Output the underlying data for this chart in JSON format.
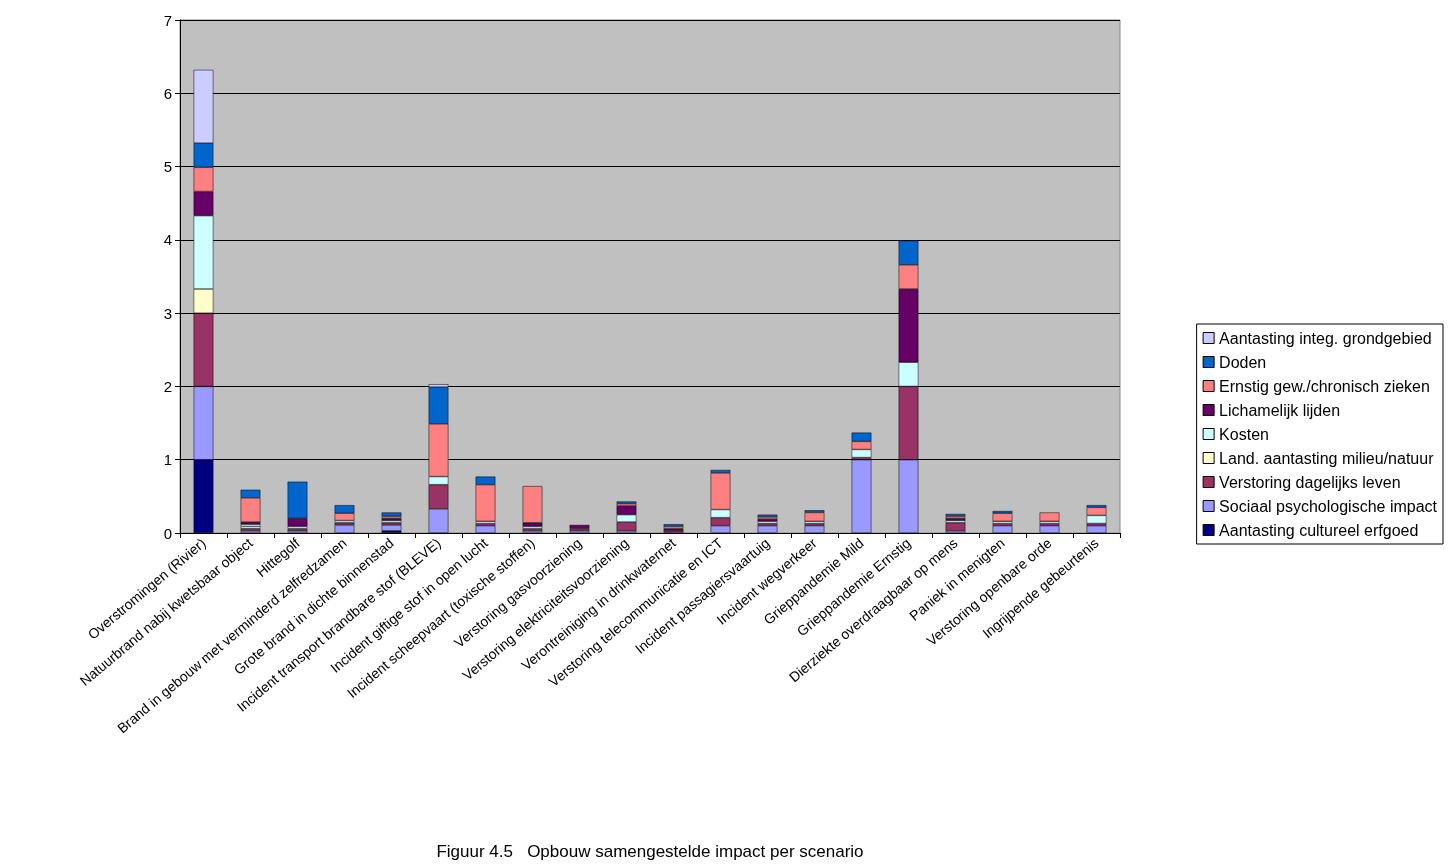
{
  "chart_data": {
    "type": "bar",
    "title": "Figuur 4.5   Opbouw samengestelde impact per scenario",
    "stacked": true,
    "legend": "right",
    "grid": "y",
    "ylim": [
      0,
      7
    ],
    "yticks": [
      0,
      1,
      2,
      3,
      4,
      5,
      6,
      7
    ],
    "categories": [
      "Overstromingen (Rivier)",
      "Natuurbrand nabij kwetsbaar object",
      "Hittegolf",
      "Brand in gebouw met verminderd zelfredzamen",
      "Grote brand in dichte binnenstad",
      "Incident transport brandbare stof (BLEVE)",
      "Incident giftige stof in open lucht",
      "Incident scheepvaart (toxische stoffen)",
      "Verstoring gasvoorziening",
      "Verstoring elektriciteitsvoorziening",
      "Verontreiniging in drinkwaternet",
      "Verstoring telecommunicatie en ICT",
      "Incident passagiersvaartuig",
      "Incident wegverkeer",
      "Grieppandemie Mild",
      "Grieppandemie Ernstig",
      "Dierziekte overdraagbaar op mens",
      "Paniek in menigten",
      "Verstoring openbare orde",
      "Ingrijpende gebeurtenis"
    ],
    "series": [
      {
        "name": "Aantasting cultureel erfgoed",
        "color": "#000080",
        "values": [
          1,
          null,
          null,
          null,
          0.03,
          null,
          null,
          null,
          null,
          null,
          null,
          null,
          null,
          null,
          null,
          null,
          null,
          null,
          null,
          null
        ]
      },
      {
        "name": "Sociaal psychologische impact",
        "color": "#9999ff",
        "values": [
          1,
          0.03,
          0.03,
          0.11,
          0.08,
          0.33,
          0.1,
          0.03,
          0.03,
          0.03,
          null,
          0.1,
          0.1,
          0.1,
          1,
          1,
          0.03,
          0.1,
          0.1,
          0.1
        ]
      },
      {
        "name": "Verstoring dagelijks leven",
        "color": "#993366",
        "values": [
          1,
          0.03,
          0.03,
          0.03,
          0.03,
          0.33,
          0.03,
          0.03,
          0.03,
          0.12,
          0.03,
          0.11,
          0.03,
          0.03,
          0.03,
          1,
          0.11,
          0.03,
          0.03,
          0.03
        ]
      },
      {
        "name": "Land. aantasting milieu/natuur",
        "color": "#ffffcc",
        "values": [
          0.33,
          0.03,
          null,
          null,
          null,
          null,
          null,
          null,
          null,
          null,
          null,
          null,
          null,
          null,
          null,
          null,
          null,
          null,
          null,
          null
        ]
      },
      {
        "name": "Kosten",
        "color": "#ccffff",
        "values": [
          1,
          0.03,
          0.03,
          0.03,
          0.03,
          0.11,
          0.03,
          0.03,
          null,
          0.1,
          null,
          0.11,
          0.03,
          0.03,
          0.11,
          0.33,
          0.03,
          0.03,
          0.03,
          0.11
        ]
      },
      {
        "name": "Lichamelijk lijden",
        "color": "#660066",
        "values": [
          0.33,
          0.03,
          0.11,
          null,
          0.03,
          null,
          null,
          0.05,
          0.05,
          0.12,
          0.03,
          null,
          0.03,
          null,
          null,
          1,
          0.03,
          null,
          null,
          null
        ]
      },
      {
        "name": "Ernstig gew./chronisch zieken",
        "color": "#ff8080",
        "values": [
          0.33,
          0.33,
          null,
          0.1,
          0.03,
          0.72,
          0.5,
          0.5,
          null,
          0.03,
          0.03,
          0.5,
          0.03,
          0.12,
          0.11,
          0.33,
          0.03,
          0.11,
          0.12,
          0.11
        ]
      },
      {
        "name": "Doden",
        "color": "#0066cc",
        "values": [
          0.33,
          0.11,
          0.5,
          0.11,
          0.05,
          0.5,
          0.11,
          null,
          null,
          0.03,
          0.03,
          0.04,
          0.03,
          0.03,
          0.12,
          0.33,
          0.03,
          0.03,
          null,
          0.03
        ]
      },
      {
        "name": "Aantasting integ. grondgebied",
        "color": "#ccccff",
        "values": [
          1,
          null,
          null,
          null,
          null,
          0.04,
          null,
          null,
          null,
          null,
          null,
          null,
          null,
          null,
          null,
          null,
          null,
          null,
          null,
          null
        ]
      }
    ]
  }
}
